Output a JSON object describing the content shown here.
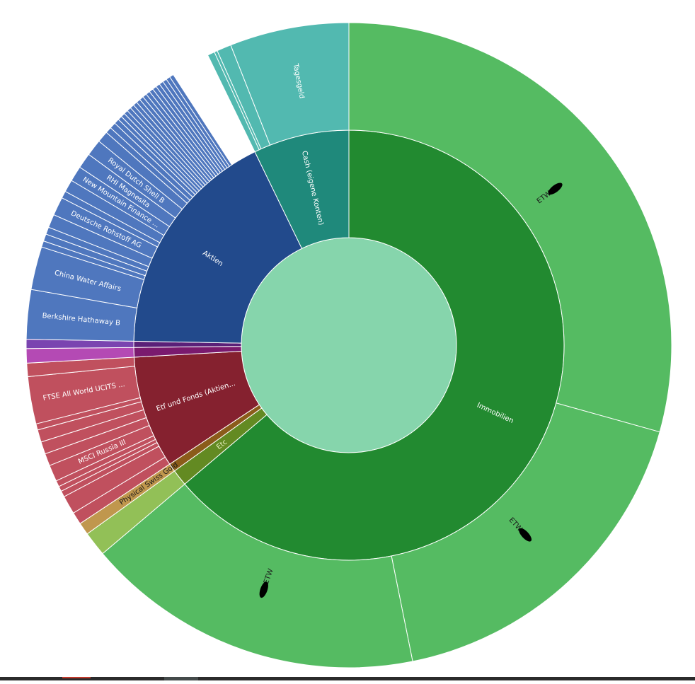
{
  "chart_data": {
    "type": "sunburst",
    "title": "",
    "colors": {
      "center": "#86d5ac",
      "immobilien_inner": "#228a30",
      "immobilien_outer": "#55bb62",
      "cash_inner": "#1f897b",
      "cash_outer": "#52b9b0",
      "aktien_inner": "#224a8c",
      "aktien_outer": "#4f77be",
      "purple_inner": "#5a2078",
      "purple_outer": "#7a44b0",
      "magenta_inner": "#7a1a6e",
      "magenta_outer": "#b44ab4",
      "etf_inner": "#85212f",
      "etf_outer": "#c0505e",
      "brown_inner": "#8b5c1a",
      "brown_outer": "#c0974d",
      "etc_inner": "#638a22",
      "etc_outer": "#92c057"
    },
    "center": {
      "label": "",
      "value": 100
    },
    "children": [
      {
        "label": "Immobilien",
        "value": 62.0,
        "color": "immobilien_inner",
        "childColor": "immobilien_outer",
        "children": [
          {
            "label": "ETW",
            "value": 28.5,
            "redacted": true
          },
          {
            "label": "ETW",
            "value": 17.0,
            "redacted": true
          },
          {
            "label": "ETW",
            "value": 16.5,
            "redacted": true
          }
        ]
      },
      {
        "label": "Etc",
        "value": 1.2,
        "color": "etc_inner",
        "childColor": "etc_outer",
        "children": [
          {
            "label": "",
            "value": 1.2
          }
        ]
      },
      {
        "label": "Physical Swiss Gold",
        "value": 0.6,
        "outer": true,
        "color": "brown_inner",
        "childColor": "brown_outer",
        "children": [
          {
            "label": "",
            "value": 0.6
          }
        ]
      },
      {
        "label": "Etf und Fonds (Aktien...",
        "value": 8.2,
        "color": "etf_inner",
        "childColor": "etf_outer",
        "children": [
          {
            "label": "",
            "value": 0.6
          },
          {
            "label": "",
            "value": 0.9
          },
          {
            "label": "",
            "value": 0.3
          },
          {
            "label": "",
            "value": 0.25
          },
          {
            "label": "",
            "value": 0.3
          },
          {
            "label": "MSCI Russia III",
            "value": 0.8
          },
          {
            "label": "",
            "value": 0.6
          },
          {
            "label": "",
            "value": 0.6
          },
          {
            "label": "",
            "value": 0.6
          },
          {
            "label": "",
            "value": 0.3
          },
          {
            "label": "FTSE All World UCITS ...",
            "value": 2.3
          },
          {
            "label": "",
            "value": 0.65
          }
        ]
      },
      {
        "label": "",
        "value": 0.7,
        "color": "magenta_inner",
        "childColor": "magenta_outer",
        "children": [
          {
            "label": "",
            "value": 0.7
          }
        ]
      },
      {
        "label": "",
        "value": 0.45,
        "color": "purple_inner",
        "childColor": "purple_outer",
        "children": [
          {
            "label": "",
            "value": 0.45
          }
        ]
      },
      {
        "label": "Aktien",
        "value": 17.0,
        "color": "aktien_inner",
        "childColor": "aktien_outer",
        "children": [
          {
            "label": "Berkshire Hathaway B",
            "value": 2.4
          },
          {
            "label": "China Water Affairs",
            "value": 2.1
          },
          {
            "label": "",
            "value": 0.3
          },
          {
            "label": "",
            "value": 0.35
          },
          {
            "label": "",
            "value": 0.35
          },
          {
            "label": "",
            "value": 0.65
          },
          {
            "label": "Deutsche Rohstoff AG",
            "value": 0.9
          },
          {
            "label": "",
            "value": 0.35
          },
          {
            "label": "",
            "value": 0.6
          },
          {
            "label": "New Mountain Finance ...",
            "value": 0.75
          },
          {
            "label": "RHI Magnesita",
            "value": 0.75
          },
          {
            "label": "Royal Dutch Shell B",
            "value": 0.8
          },
          {
            "label": "",
            "value": 0.55
          },
          {
            "label": "",
            "value": 0.3
          },
          {
            "label": "",
            "value": 0.3
          },
          {
            "label": "",
            "value": 0.25
          },
          {
            "label": "",
            "value": 0.2
          },
          {
            "label": "",
            "value": 0.2
          },
          {
            "label": "",
            "value": 0.2
          },
          {
            "label": "",
            "value": 0.2
          },
          {
            "label": "",
            "value": 0.2
          },
          {
            "label": "",
            "value": 0.2
          },
          {
            "label": "",
            "value": 0.2
          },
          {
            "label": "",
            "value": 0.2
          },
          {
            "label": "",
            "value": 0.2
          },
          {
            "label": "",
            "value": 0.2
          },
          {
            "label": "",
            "value": 0.2
          },
          {
            "label": "",
            "value": 0.2
          },
          {
            "label": "",
            "value": 0.2
          },
          {
            "label": "",
            "value": 0.2
          },
          {
            "label": "",
            "value": 0.2
          },
          {
            "label": "",
            "value": 0.2
          },
          {
            "label": "",
            "value": 0.2
          }
        ]
      },
      {
        "label": "Cash (eigene Konten)",
        "value": 7.0,
        "color": "cash_inner",
        "childColor": "cash_outer",
        "children": [
          {
            "label": "",
            "value": 0.35
          },
          {
            "label": "",
            "value": 0.15
          },
          {
            "label": "",
            "value": 0.7
          },
          {
            "label": "Tagesgeld",
            "value": 5.8
          }
        ]
      }
    ]
  }
}
